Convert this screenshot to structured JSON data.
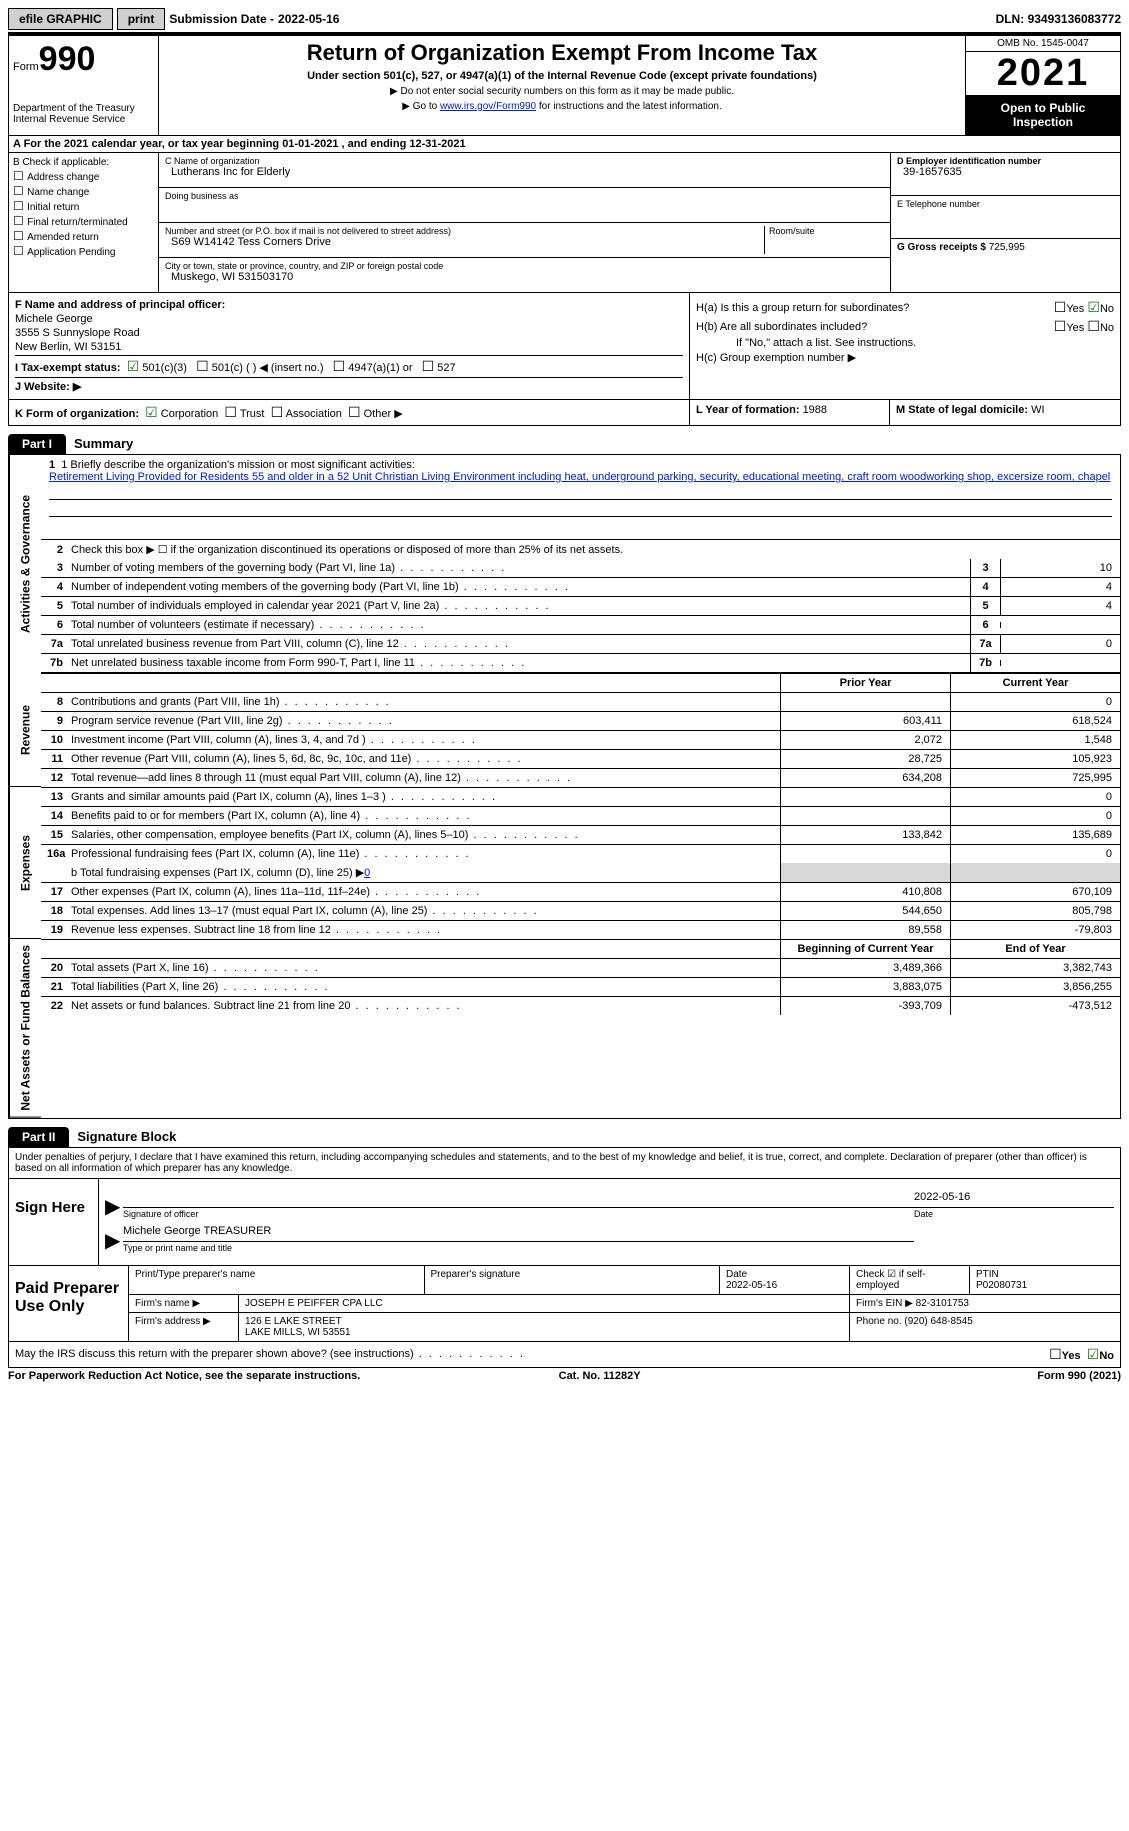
{
  "topbar": {
    "efile": "efile GRAPHIC",
    "print": "print",
    "subdate_label": "Submission Date - ",
    "subdate": "2022-05-16",
    "dln_label": "DLN: ",
    "dln": "93493136083772"
  },
  "header": {
    "form_label": "Form",
    "form_num": "990",
    "dept": "Department of the Treasury",
    "irs": "Internal Revenue Service",
    "title": "Return of Organization Exempt From Income Tax",
    "sub1": "Under section 501(c), 527, or 4947(a)(1) of the Internal Revenue Code (except private foundations)",
    "sub2": "Do not enter social security numbers on this form as it may be made public.",
    "sub3_pre": "Go to ",
    "sub3_link": "www.irs.gov/Form990",
    "sub3_post": " for instructions and the latest information.",
    "omb": "OMB No. 1545-0047",
    "year": "2021",
    "open": "Open to Public Inspection"
  },
  "row_a": "A For the 2021 calendar year, or tax year beginning 01-01-2021    , and ending 12-31-2021",
  "col_b": {
    "label": "B Check if applicable:",
    "opts": [
      "Address change",
      "Name change",
      "Initial return",
      "Final return/terminated",
      "Amended return",
      "Application Pending"
    ]
  },
  "col_c": {
    "name_label": "C Name of organization",
    "name": "Lutherans Inc for Elderly",
    "dba_label": "Doing business as",
    "dba": "",
    "addr_label": "Number and street (or P.O. box if mail is not delivered to street address)",
    "room_label": "Room/suite",
    "addr": "S69 W14142 Tess Corners Drive",
    "city_label": "City or town, state or province, country, and ZIP or foreign postal code",
    "city": "Muskego, WI  531503170"
  },
  "col_d": {
    "ein_label": "D Employer identification number",
    "ein": "39-1657635",
    "phone_label": "E Telephone number",
    "phone": "",
    "gross_label": "G Gross receipts $ ",
    "gross": "725,995"
  },
  "section_f": {
    "f_label": "F  Name and address of principal officer:",
    "name": "Michele George",
    "addr1": "3555 S Sunnyslope Road",
    "addr2": "New Berlin, WI  53151",
    "i_label": "I Tax-exempt status:",
    "i_501c3": "501(c)(3)",
    "i_501c": "501(c) (  ) ◀ (insert no.)",
    "i_4947": "4947(a)(1) or",
    "i_527": "527",
    "j": "J  Website: ▶",
    "k": "K Form of organization:",
    "k_opts": [
      "Corporation",
      "Trust",
      "Association",
      "Other ▶"
    ]
  },
  "section_h": {
    "ha": "H(a)  Is this a group return for subordinates?",
    "hb": "H(b)  Are all subordinates included?",
    "hb_note": "If \"No,\" attach a list. See instructions.",
    "hc": "H(c)  Group exemption number ▶",
    "yes": "Yes",
    "no": "No",
    "l": "L Year of formation: ",
    "l_val": "1988",
    "m": "M State of legal domicile: ",
    "m_val": "WI"
  },
  "part1": {
    "tag": "Part I",
    "title": "Summary",
    "vlabels": [
      "Activities & Governance",
      "Revenue",
      "Expenses",
      "Net Assets or Fund Balances"
    ],
    "line1_label": "1   Briefly describe the organization's mission or most significant activities:",
    "mission": "Retirement Living Provided for Residents 55 and older in a 52 Unit Christian Living Environment including heat, underground parking, security, educational meeting, craft room woodworking shop, excersize room, chapel",
    "line2": "Check this box ▶ ☐  if the organization discontinued its operations or disposed of more than 25% of its net assets.",
    "lines_single": [
      {
        "n": "3",
        "d": "Number of voting members of the governing body (Part VI, line 1a)",
        "v": "10"
      },
      {
        "n": "4",
        "d": "Number of independent voting members of the governing body (Part VI, line 1b)",
        "v": "4"
      },
      {
        "n": "5",
        "d": "Total number of individuals employed in calendar year 2021 (Part V, line 2a)",
        "v": "4"
      },
      {
        "n": "6",
        "d": "Total number of volunteers (estimate if necessary)",
        "v": ""
      },
      {
        "n": "7a",
        "d": "Total unrelated business revenue from Part VIII, column (C), line 12",
        "v": "0"
      },
      {
        "n": "7b",
        "d": "Net unrelated business taxable income from Form 990-T, Part I, line 11",
        "v": ""
      }
    ],
    "col_headers": {
      "prior": "Prior Year",
      "current": "Current Year",
      "begin": "Beginning of Current Year",
      "end": "End of Year"
    },
    "revenue": [
      {
        "n": "8",
        "d": "Contributions and grants (Part VIII, line 1h)",
        "p": "",
        "c": "0"
      },
      {
        "n": "9",
        "d": "Program service revenue (Part VIII, line 2g)",
        "p": "603,411",
        "c": "618,524"
      },
      {
        "n": "10",
        "d": "Investment income (Part VIII, column (A), lines 3, 4, and 7d )",
        "p": "2,072",
        "c": "1,548"
      },
      {
        "n": "11",
        "d": "Other revenue (Part VIII, column (A), lines 5, 6d, 8c, 9c, 10c, and 11e)",
        "p": "28,725",
        "c": "105,923"
      },
      {
        "n": "12",
        "d": "Total revenue—add lines 8 through 11 (must equal Part VIII, column (A), line 12)",
        "p": "634,208",
        "c": "725,995"
      }
    ],
    "expenses": [
      {
        "n": "13",
        "d": "Grants and similar amounts paid (Part IX, column (A), lines 1–3 )",
        "p": "",
        "c": "0"
      },
      {
        "n": "14",
        "d": "Benefits paid to or for members (Part IX, column (A), line 4)",
        "p": "",
        "c": "0"
      },
      {
        "n": "15",
        "d": "Salaries, other compensation, employee benefits (Part IX, column (A), lines 5–10)",
        "p": "133,842",
        "c": "135,689"
      },
      {
        "n": "16a",
        "d": "Professional fundraising fees (Part IX, column (A), line 11e)",
        "p": "",
        "c": "0"
      }
    ],
    "line_b": "b  Total fundraising expenses (Part IX, column (D), line 25) ▶",
    "line_b_val": "0",
    "expenses2": [
      {
        "n": "17",
        "d": "Other expenses (Part IX, column (A), lines 11a–11d, 11f–24e)",
        "p": "410,808",
        "c": "670,109"
      },
      {
        "n": "18",
        "d": "Total expenses. Add lines 13–17 (must equal Part IX, column (A), line 25)",
        "p": "544,650",
        "c": "805,798"
      },
      {
        "n": "19",
        "d": "Revenue less expenses. Subtract line 18 from line 12",
        "p": "89,558",
        "c": "-79,803"
      }
    ],
    "netassets": [
      {
        "n": "20",
        "d": "Total assets (Part X, line 16)",
        "p": "3,489,366",
        "c": "3,382,743"
      },
      {
        "n": "21",
        "d": "Total liabilities (Part X, line 26)",
        "p": "3,883,075",
        "c": "3,856,255"
      },
      {
        "n": "22",
        "d": "Net assets or fund balances. Subtract line 21 from line 20",
        "p": "-393,709",
        "c": "-473,512"
      }
    ]
  },
  "part2": {
    "tag": "Part II",
    "title": "Signature Block",
    "decl": "Under penalties of perjury, I declare that I have examined this return, including accompanying schedules and statements, and to the best of my knowledge and belief, it is true, correct, and complete. Declaration of preparer (other than officer) is based on all information of which preparer has any knowledge.",
    "sign_here": "Sign Here",
    "sig_officer": "Signature of officer",
    "sig_date": "2022-05-16",
    "date_label": "Date",
    "officer_name": "Michele George TREASURER",
    "type_label": "Type or print name and title",
    "paid": "Paid Preparer Use Only",
    "r1": {
      "a": "Print/Type preparer's name",
      "b": "Preparer's signature",
      "c_label": "Date",
      "c": "2022-05-16",
      "d": "Check ☑ if self-employed",
      "e_label": "PTIN",
      "e": "P02080731"
    },
    "r2": {
      "a": "Firm's name    ▶",
      "b": "JOSEPH E PEIFFER CPA LLC",
      "c": "Firm's EIN ▶ 82-3101753"
    },
    "r3": {
      "a": "Firm's address ▶",
      "b": "126 E LAKE STREET",
      "b2": "LAKE MILLS, WI  53551",
      "c": "Phone no. (920) 648-8545"
    },
    "discuss": "May the IRS discuss this return with the preparer shown above? (see instructions)",
    "footer_l": "For Paperwork Reduction Act Notice, see the separate instructions.",
    "footer_m": "Cat. No. 11282Y",
    "footer_r": "Form 990 (2021)"
  }
}
